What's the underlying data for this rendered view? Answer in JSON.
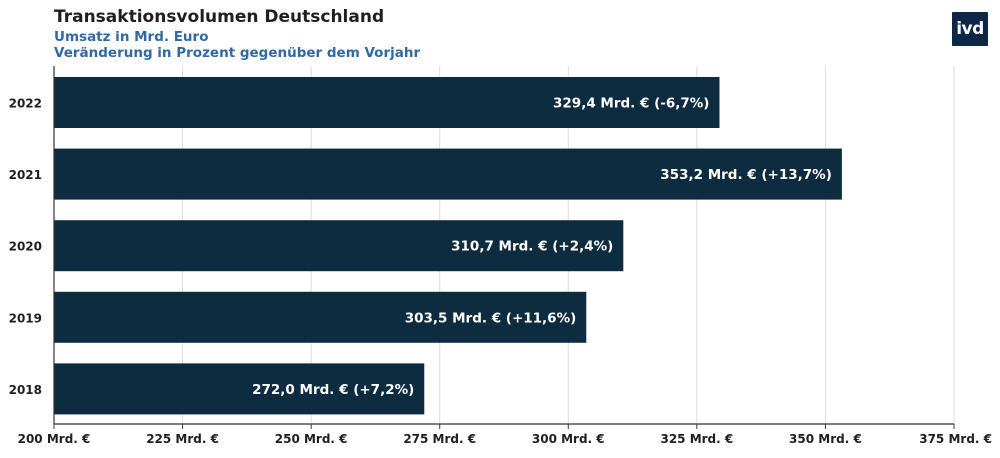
{
  "header": {
    "title": "Transaktionsvolumen Deutschland",
    "subtitle1": "Umsatz in Mrd. Euro",
    "subtitle2": "Veränderung in Prozent gegenüber dem Vorjahr",
    "logo_text": "ivd"
  },
  "colors": {
    "bar": "#0e2c40",
    "grid": "#dcdcdc",
    "axis": "#333333",
    "subtitle": "#2f6aa6",
    "logo_bg": "#0c2748"
  },
  "chart_data": {
    "type": "bar",
    "orientation": "horizontal",
    "title": "Transaktionsvolumen Deutschland",
    "categories": [
      "2022",
      "2021",
      "2020",
      "2019",
      "2018"
    ],
    "values": [
      329.4,
      353.2,
      310.7,
      303.5,
      272.0
    ],
    "data_labels": [
      "329,4 Mrd. € (-6,7%)",
      "353,2 Mrd. € (+13,7%)",
      "310,7 Mrd. € (+2,4%)",
      "303,5 Mrd. € (+11,6%)",
      "272,0 Mrd. € (+7,2%)"
    ],
    "xlim": [
      200,
      375
    ],
    "xticks": [
      200,
      225,
      250,
      275,
      300,
      325,
      350,
      375
    ],
    "xtick_labels": [
      "200 Mrd. €",
      "225 Mrd. €",
      "250 Mrd. €",
      "275 Mrd. €",
      "300 Mrd. €",
      "325 Mrd. €",
      "350 Mrd. €",
      "375 Mrd. €"
    ],
    "grid": true,
    "legend": "none"
  }
}
